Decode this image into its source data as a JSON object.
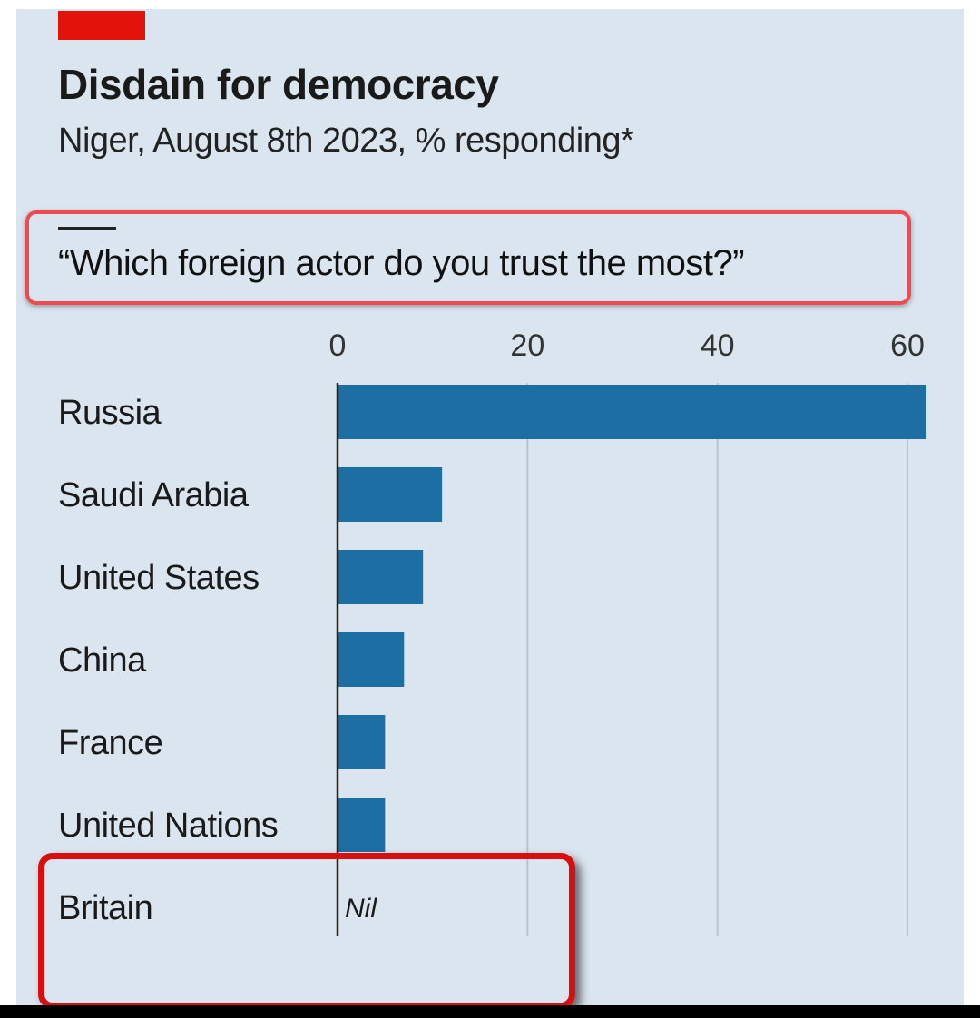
{
  "colors": {
    "background": "#dbe5ef",
    "bar": "#1c6ea3",
    "accent_tag": "#e3120b",
    "highlight": "#e3120b",
    "gridline": "#b8c3cc"
  },
  "chart_data": {
    "type": "bar",
    "orientation": "horizontal",
    "title": "Disdain for democracy",
    "subtitle": "Niger, August 8th 2023, % responding*",
    "question": "“Which foreign actor do you trust the most?”",
    "categories": [
      "Russia",
      "Saudi Arabia",
      "United States",
      "China",
      "France",
      "United Nations",
      "Britain"
    ],
    "values": [
      62,
      11,
      9,
      7,
      5,
      5,
      0
    ],
    "value_labels": [
      "",
      "",
      "",
      "",
      "",
      "",
      "Nil"
    ],
    "xlim": [
      0,
      60
    ],
    "xticks": [
      0,
      20,
      40,
      60
    ],
    "xlabel": "",
    "ylabel": "",
    "grid": true
  }
}
